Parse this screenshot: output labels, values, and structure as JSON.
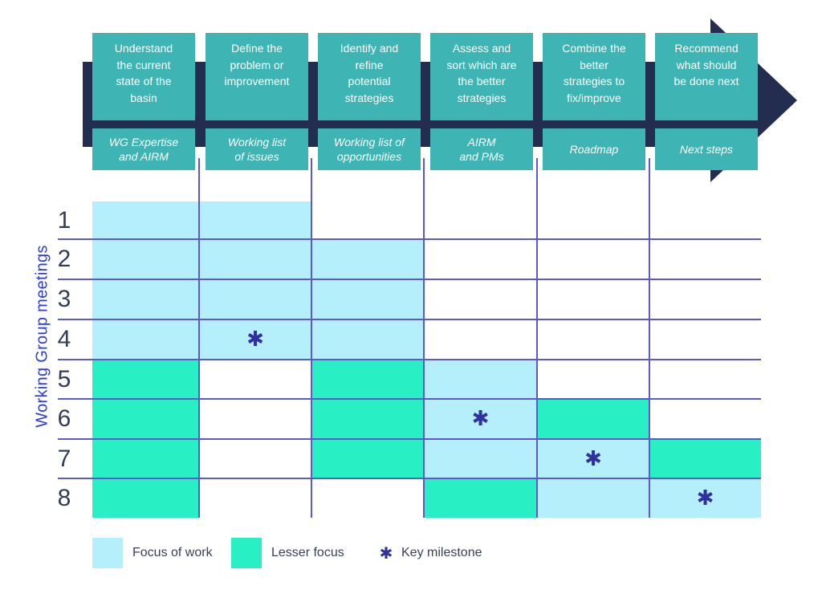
{
  "colors": {
    "teal": "#3eb5b4",
    "navy": "#232d50",
    "focus": "#b5effc",
    "lesser": "#28efc4",
    "grid": "#5c5ac9",
    "axis": "#2b3cdb",
    "row_number": "#343c55",
    "legend_text": "#3a4157",
    "milestone": "#30309e",
    "box_text": "#ffffff"
  },
  "process_steps": [
    {
      "title": "Understand\nthe current\nstate of the\nbasin",
      "deliverable": "WG Expertise\nand AIRM"
    },
    {
      "title": "Define the\nproblem or\nimprovement",
      "deliverable": "Working list\nof issues"
    },
    {
      "title": "Identify and\nrefine\npotential\nstrategies",
      "deliverable": "Working list of\nopportunities"
    },
    {
      "title": "Assess and\nsort which are\nthe better\nstrategies",
      "deliverable": "AIRM\nand PMs"
    },
    {
      "title": "Combine the\nbetter\nstrategies to\nfix/improve",
      "deliverable": "Roadmap"
    },
    {
      "title": "Recommend\nwhat should\nbe done next",
      "deliverable": "Next steps"
    }
  ],
  "matrix": {
    "axis_label": "Working Group meetings",
    "rows": [
      {
        "label": "1",
        "cells": [
          "focus",
          "focus",
          "none",
          "none",
          "none",
          "none"
        ],
        "milestone": null
      },
      {
        "label": "2",
        "cells": [
          "focus",
          "focus",
          "focus",
          "none",
          "none",
          "none"
        ],
        "milestone": null
      },
      {
        "label": "3",
        "cells": [
          "focus",
          "focus",
          "focus",
          "none",
          "none",
          "none"
        ],
        "milestone": null
      },
      {
        "label": "4",
        "cells": [
          "focus",
          "focus",
          "focus",
          "none",
          "none",
          "none"
        ],
        "milestone": 1
      },
      {
        "label": "5",
        "cells": [
          "lesser",
          "none",
          "lesser",
          "focus",
          "none",
          "none"
        ],
        "milestone": null
      },
      {
        "label": "6",
        "cells": [
          "lesser",
          "none",
          "lesser",
          "focus",
          "lesser",
          "none"
        ],
        "milestone": 3
      },
      {
        "label": "7",
        "cells": [
          "lesser",
          "none",
          "lesser",
          "focus",
          "focus",
          "lesser"
        ],
        "milestone": 4
      },
      {
        "label": "8",
        "cells": [
          "lesser",
          "none",
          "none",
          "lesser",
          "focus",
          "focus"
        ],
        "milestone": 5
      }
    ]
  },
  "legend": {
    "focus_label": "Focus of work",
    "lesser_label": "Lesser focus",
    "milestone_label": "Key milestone"
  },
  "milestone_glyph": "✱"
}
